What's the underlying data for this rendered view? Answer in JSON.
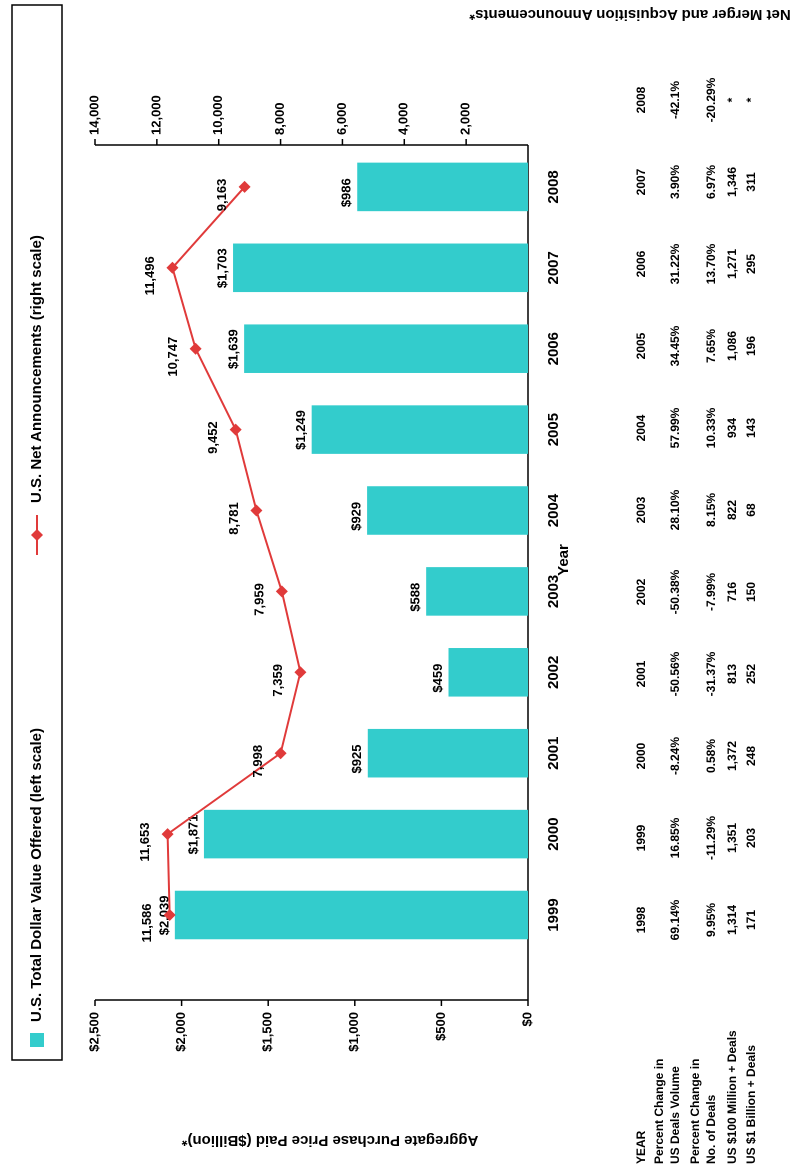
{
  "chart_data": {
    "type": "bar",
    "xlabel": "Year",
    "ylabel": "Aggregate Purchase Price Paid ($Billion)*",
    "y2label": "Net Merger and Acquisition Announcements*",
    "categories": [
      "1999",
      "2000",
      "2001",
      "2002",
      "2003",
      "2004",
      "2005",
      "2006",
      "2007",
      "2008"
    ],
    "series": [
      {
        "name": "U.S. Total Dollar Value Offered (left scale)",
        "type": "bar",
        "color": "#33cccc",
        "values": [
          2039,
          1871,
          925,
          459,
          588,
          929,
          1249,
          1639,
          1703,
          986
        ],
        "value_labels": [
          "$2,039",
          "$1,871",
          "$925",
          "$459",
          "$588",
          "$929",
          "$1,249",
          "$1,639",
          "$1,703",
          "$986"
        ]
      },
      {
        "name": "U.S. Net Announcements (right scale)",
        "type": "line",
        "axis": "y2",
        "color": "#e03a3a",
        "values": [
          11586,
          11653,
          7998,
          7359,
          7959,
          8781,
          9452,
          10747,
          11496,
          9163
        ],
        "value_labels": [
          "11,586",
          "11,653",
          "7,998",
          "7,359",
          "7,959",
          "8,781",
          "9,452",
          "10,747",
          "11,496",
          "9,163"
        ]
      }
    ],
    "ylim": [
      0,
      2500
    ],
    "yticks": [
      {
        "value": 0,
        "label": "$0"
      },
      {
        "value": 500,
        "label": "$500"
      },
      {
        "value": 1000,
        "label": "$1,000"
      },
      {
        "value": 1500,
        "label": "$1,500"
      },
      {
        "value": 2000,
        "label": "$2,000"
      },
      {
        "value": 2500,
        "label": "$2,500"
      }
    ],
    "y2lim": [
      0,
      14000
    ],
    "y2ticks": [
      {
        "value": 2000,
        "label": "2,000"
      },
      {
        "value": 4000,
        "label": "4,000"
      },
      {
        "value": 6000,
        "label": "6,000"
      },
      {
        "value": 8000,
        "label": "8,000"
      },
      {
        "value": 10000,
        "label": "10,000"
      },
      {
        "value": 12000,
        "label": "12,000"
      },
      {
        "value": 14000,
        "label": "14,000"
      }
    ],
    "grid": false
  },
  "table": {
    "rows": [
      {
        "label": [
          "YEAR"
        ],
        "cells": [
          "1998",
          "1999",
          "2000",
          "2001",
          "2002",
          "2003",
          "2004",
          "2005",
          "2006",
          "2007",
          "2008"
        ]
      },
      {
        "label": [
          "Percent Change in",
          "US Deals Volume"
        ],
        "cells": [
          "69.14%",
          "16.85%",
          "-8.24%",
          "-50.56%",
          "-50.38%",
          "28.10%",
          "57.99%",
          "34.45%",
          "31.22%",
          "3.90%",
          "-42.1%"
        ]
      },
      {
        "label": [
          "Percent Change in",
          "No. of Deals"
        ],
        "cells": [
          "9.95%",
          "-11.29%",
          "0.58%",
          "-31.37%",
          "-7.99%",
          "8.15%",
          "10.33%",
          "7.65%",
          "13.70%",
          "6.97%",
          "-20.29%"
        ]
      },
      {
        "label": [
          "US $100 Million + Deals"
        ],
        "cells": [
          "1,314",
          "1,351",
          "1,372",
          "813",
          "716",
          "822",
          "934",
          "1,086",
          "1,271",
          "1,346",
          "*"
        ]
      },
      {
        "label": [
          "US $1 Billion + Deals"
        ],
        "cells": [
          "171",
          "203",
          "248",
          "252",
          "150",
          "68",
          "143",
          "196",
          "295",
          "311",
          "*"
        ]
      }
    ]
  }
}
